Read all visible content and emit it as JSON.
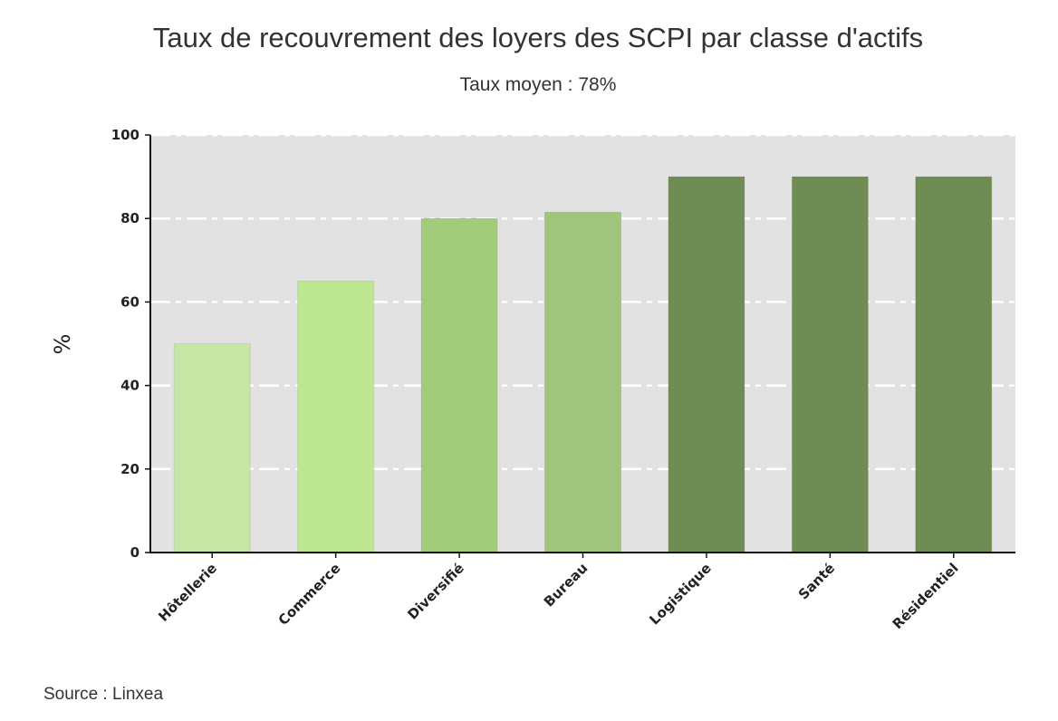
{
  "chart_data": {
    "type": "bar",
    "title": "Taux de recouvrement des loyers des SCPI par classe d'actifs",
    "subtitle": "Taux moyen : 78%",
    "xlabel": "",
    "ylabel": "%",
    "ylim": [
      0,
      100
    ],
    "yticks": [
      "0",
      "20",
      "40",
      "60",
      "80",
      "100"
    ],
    "categories": [
      "Hôtellerie",
      "Commerce",
      "Diversifié",
      "Bureau",
      "Logistique",
      "Santé",
      "Résidentiel"
    ],
    "values": [
      50,
      65,
      80,
      81.5,
      90,
      90,
      90
    ],
    "bar_colors": [
      "#c5e6a5",
      "#bde78f",
      "#a2cc7b",
      "#9fc47b",
      "#6f8c52",
      "#6f8c52",
      "#6f8c52"
    ],
    "background_color": "#e2e2e2",
    "grid": true,
    "source": "Source : Linxea"
  }
}
